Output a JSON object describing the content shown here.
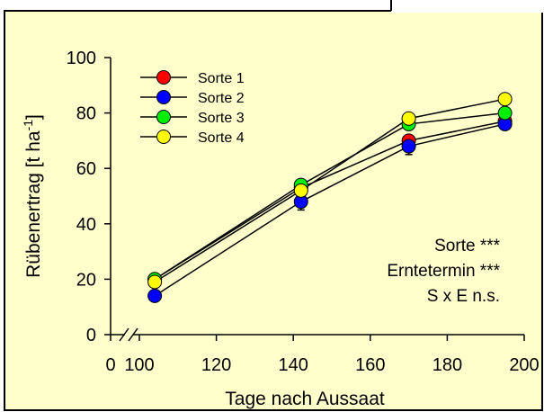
{
  "chart_data": {
    "type": "line",
    "xlabel": "Tage nach Aussaat",
    "ylabel_main": "Rübenertrag [t ha",
    "ylabel_sup": "-1",
    "ylabel_end": "]",
    "xlim": [
      0,
      200
    ],
    "ylim": [
      0,
      100
    ],
    "x_axis_break": true,
    "xticks": [
      0,
      100,
      120,
      140,
      160,
      180,
      200
    ],
    "yticks": [
      0,
      20,
      40,
      60,
      80,
      100
    ],
    "x": [
      104,
      142,
      170,
      195
    ],
    "series": [
      {
        "name": "Sorte 1",
        "color": "#ff0000",
        "values": [
          20,
          53,
          70,
          77
        ],
        "errors": [
          0,
          0,
          0,
          0
        ]
      },
      {
        "name": "Sorte 2",
        "color": "#0000ff",
        "values": [
          14,
          48,
          68,
          76
        ],
        "errors": [
          0,
          3,
          3,
          2
        ]
      },
      {
        "name": "Sorte 3",
        "color": "#00ee00",
        "values": [
          20,
          54,
          76,
          80
        ],
        "errors": [
          0,
          0,
          0,
          0
        ]
      },
      {
        "name": "Sorte 4",
        "color": "#ffff00",
        "values": [
          19,
          52,
          78,
          85
        ],
        "errors": [
          0,
          0,
          0,
          0
        ]
      }
    ],
    "legend_position": "top-left",
    "annotations": [
      "Sorte ***",
      "Erntetermin ***",
      "S x E n.s."
    ],
    "colors": {
      "page_background": "#ffffff",
      "frame_background": "#ffffcc",
      "frame_border": "#000000",
      "line": "#000000"
    }
  }
}
